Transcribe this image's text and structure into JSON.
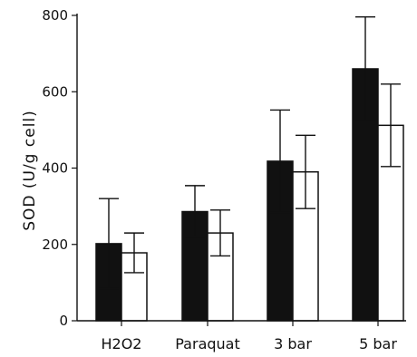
{
  "chart_data": {
    "type": "bar",
    "title": "",
    "xlabel": "",
    "ylabel": "SOD (U/g cell)",
    "ylim": [
      0,
      800
    ],
    "yticks": [
      0,
      200,
      400,
      600,
      800
    ],
    "categories": [
      "H2O2",
      "Paraquat",
      "3 bar",
      "5 bar"
    ],
    "grid": false,
    "legend": "none",
    "series": [
      {
        "fill": "#111111",
        "values": [
          202,
          286,
          418,
          660
        ],
        "errors": [
          118,
          68,
          134,
          136
        ]
      },
      {
        "fill": "#ffffff",
        "values": [
          178,
          230,
          390,
          512
        ],
        "errors": [
          52,
          60,
          96,
          108
        ]
      }
    ]
  }
}
